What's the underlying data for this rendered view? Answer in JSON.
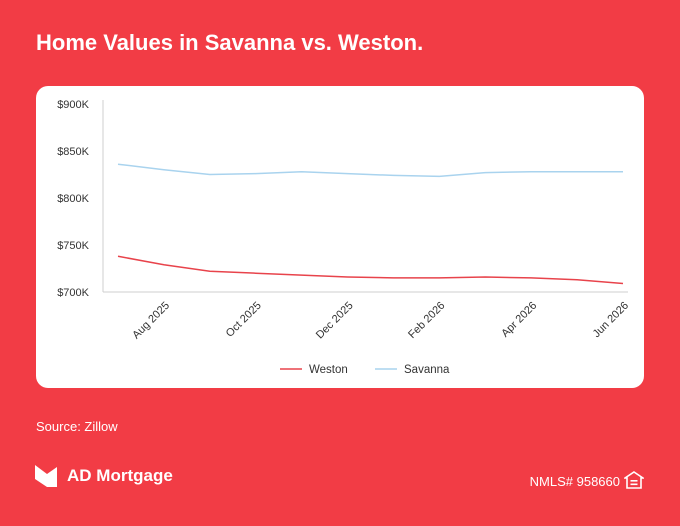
{
  "header": {
    "title": "Home Values in Savanna vs. Weston."
  },
  "footer": {
    "source": "Source: Zillow",
    "brand": "AD Mortgage",
    "nmls": "NMLS# 958660",
    "logo_icon": "ad-mortgage-logo-icon",
    "housing_icon": "equal-housing-icon"
  },
  "colors": {
    "background": "#f23c45",
    "weston": "#e8434b",
    "savanna": "#a9d3ee"
  },
  "chart_data": {
    "type": "line",
    "title": "Home Values in Savanna vs. Weston.",
    "xlabel": "",
    "ylabel": "",
    "x": [
      "Jul 2025",
      "Aug 2025",
      "Sep 2025",
      "Oct 2025",
      "Nov 2025",
      "Dec 2025",
      "Jan 2026",
      "Feb 2026",
      "Mar 2026",
      "Apr 2026",
      "May 2026",
      "Jun 2026"
    ],
    "xtick_labels": [
      "Aug 2025",
      "Oct 2025",
      "Dec 2025",
      "Feb 2026",
      "Apr 2026",
      "Jun 2026"
    ],
    "ytick_labels": [
      "$700K",
      "$750K",
      "$800K",
      "$850K",
      "$900K"
    ],
    "ylim": [
      700000,
      900000
    ],
    "grid": false,
    "legend": "bottom-center",
    "series": [
      {
        "name": "Weston",
        "color": "#e8434b",
        "values": [
          738000,
          729000,
          722000,
          720000,
          718000,
          716000,
          715000,
          715000,
          716000,
          715000,
          713000,
          709000
        ]
      },
      {
        "name": "Savanna",
        "color": "#a9d3ee",
        "values": [
          836000,
          830000,
          825000,
          826000,
          828000,
          826000,
          824000,
          823000,
          827000,
          828000,
          828000,
          828000
        ]
      }
    ]
  }
}
